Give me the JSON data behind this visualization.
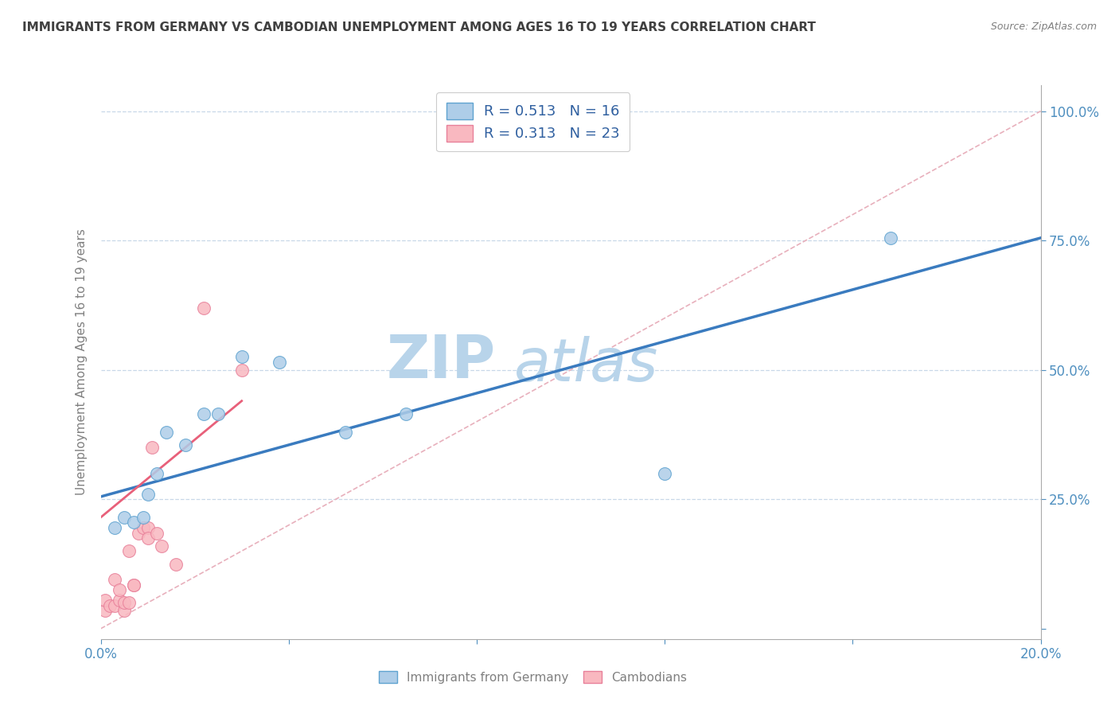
{
  "title": "IMMIGRANTS FROM GERMANY VS CAMBODIAN UNEMPLOYMENT AMONG AGES 16 TO 19 YEARS CORRELATION CHART",
  "source": "Source: ZipAtlas.com",
  "ylabel": "Unemployment Among Ages 16 to 19 years",
  "xlim": [
    0.0,
    0.2
  ],
  "ylim": [
    -0.02,
    1.05
  ],
  "blue_R": 0.513,
  "blue_N": 16,
  "pink_R": 0.313,
  "pink_N": 23,
  "blue_scatter_x": [
    0.003,
    0.005,
    0.007,
    0.009,
    0.01,
    0.012,
    0.014,
    0.018,
    0.022,
    0.025,
    0.03,
    0.038,
    0.052,
    0.065,
    0.12,
    0.168
  ],
  "blue_scatter_y": [
    0.195,
    0.215,
    0.205,
    0.215,
    0.26,
    0.3,
    0.38,
    0.355,
    0.415,
    0.415,
    0.525,
    0.515,
    0.38,
    0.415,
    0.3,
    0.755
  ],
  "pink_scatter_x": [
    0.001,
    0.001,
    0.002,
    0.003,
    0.003,
    0.004,
    0.004,
    0.005,
    0.005,
    0.006,
    0.006,
    0.007,
    0.007,
    0.008,
    0.009,
    0.01,
    0.01,
    0.011,
    0.012,
    0.013,
    0.016,
    0.022,
    0.03
  ],
  "pink_scatter_y": [
    0.035,
    0.055,
    0.045,
    0.045,
    0.095,
    0.055,
    0.075,
    0.035,
    0.05,
    0.05,
    0.15,
    0.085,
    0.085,
    0.185,
    0.195,
    0.195,
    0.175,
    0.35,
    0.185,
    0.16,
    0.125,
    0.62,
    0.5
  ],
  "blue_line_x": [
    0.0,
    0.2
  ],
  "blue_line_y": [
    0.255,
    0.755
  ],
  "pink_line_x": [
    0.0,
    0.03
  ],
  "pink_line_y": [
    0.215,
    0.44
  ],
  "diag_line_x": [
    0.0,
    0.2
  ],
  "diag_line_y": [
    0.0,
    1.0
  ],
  "blue_color": "#aecde8",
  "blue_edge_color": "#5fa3d0",
  "blue_line_color": "#3a7bbf",
  "pink_color": "#f9b8c0",
  "pink_edge_color": "#e8809a",
  "pink_line_color": "#e8607a",
  "diag_color": "#e8b0bc",
  "watermark_top": "ZIP",
  "watermark_bot": "atlas",
  "watermark_color": "#b8d4ea",
  "background_color": "#ffffff",
  "grid_color": "#c8d8e8",
  "title_color": "#404040",
  "axis_label_color": "#808080",
  "tick_color": "#5090c0",
  "legend_text_color": "#3060a0"
}
